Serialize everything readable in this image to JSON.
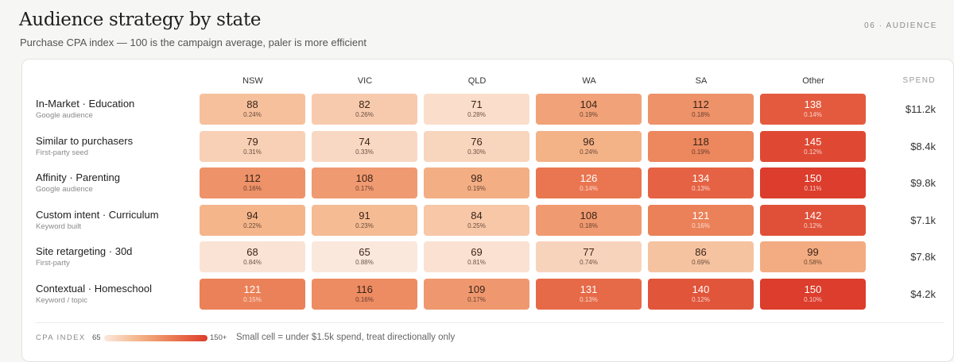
{
  "header": {
    "title": "Audience strategy by state",
    "subtitle": "Purchase CPA index — 100 is the campaign average, paler is more efficient",
    "tag": "06 · AUDIENCE"
  },
  "table": {
    "spend_header": "SPEND"
  },
  "legend": {
    "label": "CPA INDEX",
    "min": "65",
    "max": "150+",
    "note": "Small cell = under $1.5k spend, treat directionally only"
  },
  "chart_data": {
    "type": "heatmap",
    "title": "Audience strategy by state",
    "subtitle": "Purchase CPA index — 100 is the campaign average, paler is more efficient",
    "columns": [
      "NSW",
      "VIC",
      "QLD",
      "WA",
      "SA",
      "Other"
    ],
    "color_scale": {
      "min": 65,
      "max": 150,
      "low_color": "#fbe8dc",
      "high_color": "#dc3d2c"
    },
    "rows": [
      {
        "name": "In-Market · Education",
        "sub": "Google audience",
        "spend": "$11.2k",
        "values": [
          88,
          82,
          71,
          104,
          112,
          138
        ],
        "rates": [
          "0.24%",
          "0.26%",
          "0.28%",
          "0.19%",
          "0.18%",
          "0.14%"
        ]
      },
      {
        "name": "Similar to purchasers",
        "sub": "First-party seed",
        "spend": "$8.4k",
        "values": [
          79,
          74,
          76,
          96,
          118,
          145
        ],
        "rates": [
          "0.31%",
          "0.33%",
          "0.30%",
          "0.24%",
          "0.19%",
          "0.12%"
        ]
      },
      {
        "name": "Affinity · Parenting",
        "sub": "Google audience",
        "spend": "$9.8k",
        "values": [
          112,
          108,
          98,
          126,
          134,
          150
        ],
        "rates": [
          "0.16%",
          "0.17%",
          "0.19%",
          "0.14%",
          "0.13%",
          "0.11%"
        ]
      },
      {
        "name": "Custom intent · Curriculum",
        "sub": "Keyword built",
        "spend": "$7.1k",
        "values": [
          94,
          91,
          84,
          108,
          121,
          142
        ],
        "rates": [
          "0.22%",
          "0.23%",
          "0.25%",
          "0.18%",
          "0.16%",
          "0.12%"
        ]
      },
      {
        "name": "Site retargeting · 30d",
        "sub": "First-party",
        "spend": "$7.8k",
        "values": [
          68,
          65,
          69,
          77,
          86,
          99
        ],
        "rates": [
          "0.84%",
          "0.88%",
          "0.81%",
          "0.74%",
          "0.69%",
          "0.58%"
        ]
      },
      {
        "name": "Contextual · Homeschool",
        "sub": "Keyword / topic",
        "spend": "$4.2k",
        "values": [
          121,
          116,
          109,
          131,
          140,
          150
        ],
        "rates": [
          "0.15%",
          "0.16%",
          "0.17%",
          "0.13%",
          "0.12%",
          "0.10%"
        ]
      }
    ]
  }
}
